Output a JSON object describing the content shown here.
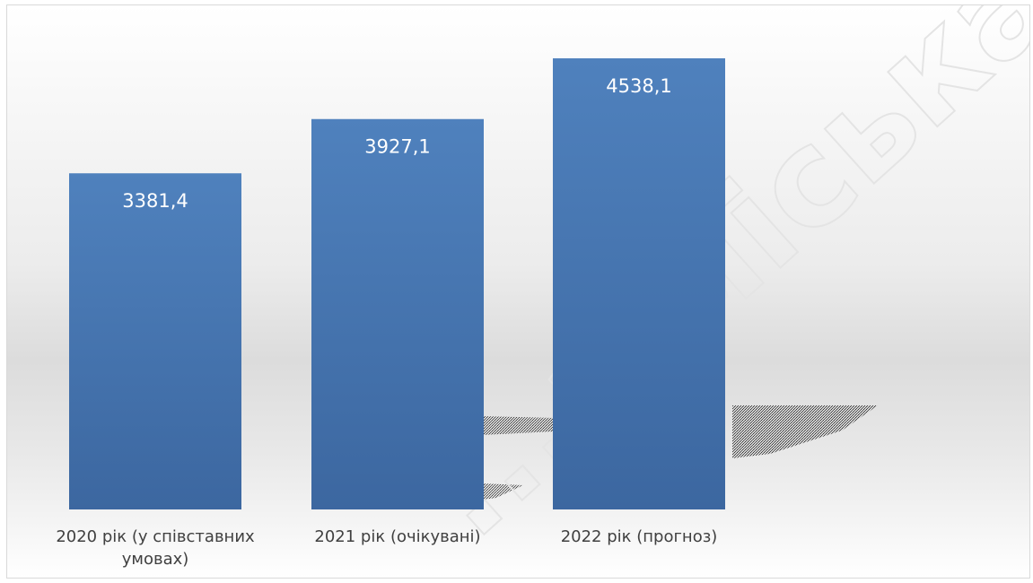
{
  "chart_data": {
    "type": "bar",
    "categories": [
      [
        "2020 рік (у співставних",
        "умовах)"
      ],
      [
        "2021 рік (очікувані)"
      ],
      [
        "2022 рік (прогноз)"
      ]
    ],
    "values": [
      3381.4,
      3927.1,
      4538.1
    ],
    "value_labels": [
      "3381,4",
      "3927,1",
      "4538,1"
    ],
    "title": "",
    "xlabel": "",
    "ylabel": "",
    "ylim": [
      0,
      4800
    ],
    "grid": false,
    "legend": "none",
    "colors": {
      "bar_top": "#4f81bd",
      "bar_bottom": "#3c67a0",
      "value_label": "#ffffff",
      "category_label": "#404040"
    }
  },
  "watermark": "...а міська ВЦ..."
}
